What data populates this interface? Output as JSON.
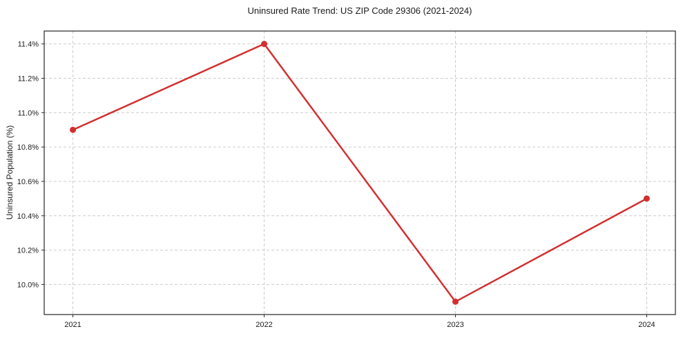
{
  "chart_data": {
    "type": "line",
    "title": "Uninsured Rate Trend: US ZIP Code 29306 (2021-2024)",
    "xlabel": "",
    "ylabel": "Uninsured Population (%)",
    "categories": [
      "2021",
      "2022",
      "2023",
      "2024"
    ],
    "x": [
      2021,
      2022,
      2023,
      2024
    ],
    "values": [
      10.9,
      11.4,
      9.9,
      10.5
    ],
    "y_ticks": [
      10.0,
      10.2,
      10.4,
      10.6,
      10.8,
      11.0,
      11.2,
      11.4
    ],
    "y_tick_labels": [
      "10.0%",
      "10.2%",
      "10.4%",
      "10.6%",
      "10.8%",
      "11.0%",
      "11.2%",
      "11.4%"
    ],
    "xlim": [
      2020.85,
      2024.15
    ],
    "ylim": [
      9.825,
      11.475
    ],
    "grid": true,
    "grid_style": "dashed",
    "legend": "none",
    "colors": {
      "line": "#d32f2f",
      "marker": "#d32f2f",
      "grid": "#cccccc",
      "spine": "#262626",
      "tick": "#262626",
      "text": "#1a1a1a",
      "background": "#ffffff"
    }
  }
}
